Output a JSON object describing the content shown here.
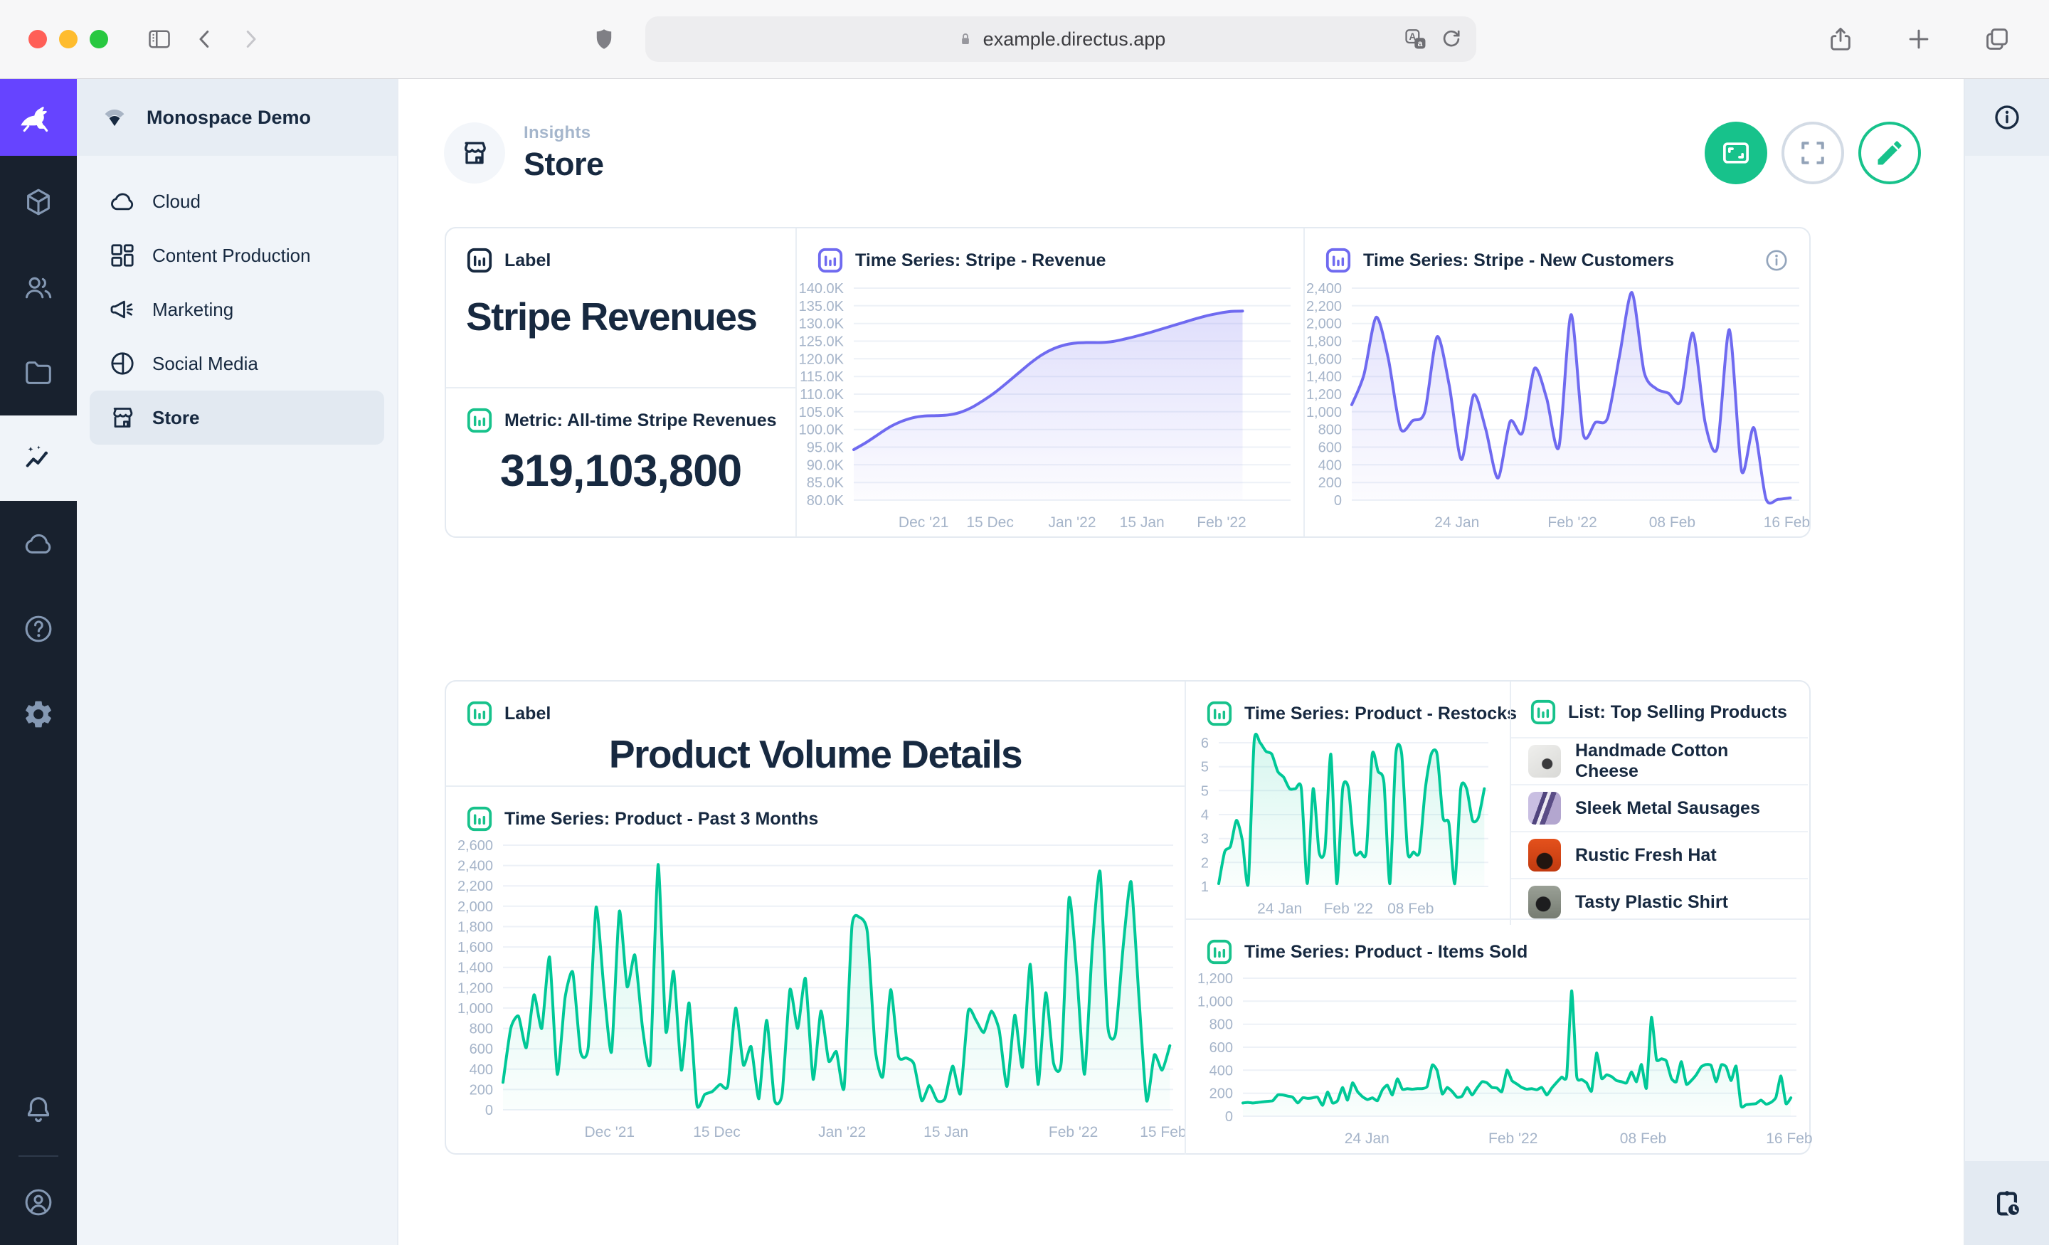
{
  "browser": {
    "url": "example.directus.app",
    "icons": [
      "sidebar-toggle",
      "back",
      "forward",
      "privacy-shield",
      "lock",
      "translate",
      "reload",
      "share",
      "new-tab",
      "tabs-overview"
    ]
  },
  "module_bar": {
    "icons": [
      "rabbit-logo",
      "collections-cube",
      "users",
      "files-folder",
      "insights-active",
      "cloud",
      "help",
      "settings-gear",
      "notifications-bell",
      "user-avatar"
    ]
  },
  "sidebar": {
    "project": "Monospace Demo",
    "items": [
      {
        "label": "Cloud",
        "icon": "cloud"
      },
      {
        "label": "Content Production",
        "icon": "dashboard-grid"
      },
      {
        "label": "Marketing",
        "icon": "megaphone"
      },
      {
        "label": "Social Media",
        "icon": "pie-circle"
      },
      {
        "label": "Store",
        "icon": "storefront",
        "active": true
      }
    ]
  },
  "header": {
    "breadcrumb": "Insights",
    "title": "Store",
    "actions": [
      "present-mode",
      "fullscreen",
      "edit"
    ]
  },
  "panels": {
    "label_stripe": {
      "title": "Label",
      "text": "Stripe Revenues"
    },
    "metric": {
      "title": "Metric: All-time Stripe Revenues",
      "value": "319,103,800"
    },
    "revenue": {
      "title": "Time Series: Stripe - Revenue"
    },
    "new_customers": {
      "title": "Time Series: Stripe - New Customers"
    },
    "label_product": {
      "title": "Label",
      "text": "Product Volume Details"
    },
    "past3": {
      "title": "Time Series: Product - Past 3 Months"
    },
    "restocks": {
      "title": "Time Series: Product - Restocks"
    },
    "list": {
      "title": "List: Top Selling Products",
      "products": [
        {
          "name": "Handmade Cotton Cheese"
        },
        {
          "name": "Sleek Metal Sausages"
        },
        {
          "name": "Rustic Fresh Hat"
        },
        {
          "name": "Tasty Plastic Shirt"
        }
      ]
    },
    "items_sold": {
      "title": "Time Series: Product - Items Sold"
    }
  },
  "colors": {
    "accent_green": "#17c28b",
    "chart_green": "#00c897",
    "chart_purple": "#6f6af0",
    "navy": "#172940",
    "brand_purple": "#6644ff"
  },
  "chart_data": [
    {
      "id": "revenue",
      "type": "area",
      "title": "Time Series: Stripe - Revenue",
      "color": "#6f6af0",
      "fo": 0.22,
      "ymin": 80,
      "ymax": 140,
      "xend": 0.89,
      "smooth": 1,
      "yticks": [
        "140.0K",
        "135.0K",
        "130.0K",
        "125.0K",
        "120.0K",
        "115.0K",
        "110.0K",
        "105.0K",
        "100.0K",
        "95.0K",
        "90.0K",
        "85.0K",
        "80.0K"
      ],
      "xticks": [
        {
          "p": 0.16,
          "l": "Dec '21"
        },
        {
          "p": 0.312,
          "l": "15 Dec"
        },
        {
          "p": 0.5,
          "l": "Jan '22"
        },
        {
          "p": 0.66,
          "l": "15 Jan"
        },
        {
          "p": 0.842,
          "l": "Feb '22"
        }
      ],
      "values": [
        94.3,
        96.2,
        98.4,
        100.6,
        102.2,
        103.3,
        103.8,
        103.9,
        104.1,
        104.8,
        106.2,
        108.2,
        110.5,
        113.2,
        116,
        118.8,
        121.2,
        122.9,
        124,
        124.5,
        124.6,
        124.6,
        124.9,
        125.6,
        126.4,
        127.3,
        128.3,
        129.3,
        130.3,
        131.3,
        132.2,
        132.9,
        133.4,
        133.5
      ]
    },
    {
      "id": "newcust",
      "type": "area",
      "title": "Time Series: Stripe - New Customers",
      "color": "#6f6af0",
      "fo": 0.2,
      "ymin": 0,
      "ymax": 2400,
      "xend": 0.98,
      "smooth": 0.8,
      "yticks": [
        "2,400",
        "2,200",
        "2,000",
        "1,800",
        "1,600",
        "1,400",
        "1,200",
        "1,000",
        "800",
        "600",
        "400",
        "200",
        "0"
      ],
      "xticks": [
        {
          "p": 0.235,
          "l": "24 Jan"
        },
        {
          "p": 0.493,
          "l": "Feb '22"
        },
        {
          "p": 0.716,
          "l": "08 Feb"
        },
        {
          "p": 0.972,
          "l": "16 Feb"
        }
      ],
      "values": [
        1080,
        1420,
        2070,
        1600,
        810,
        900,
        1000,
        1850,
        1300,
        460,
        1190,
        800,
        250,
        890,
        760,
        1490,
        1150,
        600,
        2100,
        750,
        880,
        930,
        1650,
        2350,
        1450,
        1260,
        1210,
        1120,
        1890,
        880,
        590,
        1930,
        330,
        820,
        15,
        10,
        25
      ]
    },
    {
      "id": "past3",
      "type": "area",
      "title": "Time Series: Product - Past 3 Months",
      "color": "#00c897",
      "fo": 0.16,
      "ymin": 0,
      "ymax": 2600,
      "xend": 0.995,
      "smooth": 0.6,
      "yticks": [
        "2,600",
        "2,400",
        "2,200",
        "2,000",
        "1,800",
        "1,600",
        "1,400",
        "1,200",
        "1,000",
        "800",
        "600",
        "400",
        "200",
        "0"
      ],
      "xticks": [
        {
          "p": 0.159,
          "l": "Dec '21"
        },
        {
          "p": 0.319,
          "l": "15 Dec"
        },
        {
          "p": 0.506,
          "l": "Jan '22"
        },
        {
          "p": 0.661,
          "l": "15 Jan"
        },
        {
          "p": 0.851,
          "l": "Feb '22"
        },
        {
          "p": 0.985,
          "l": "15 Feb"
        }
      ],
      "values": [
        270,
        800,
        920,
        610,
        1130,
        800,
        1500,
        350,
        1100,
        1350,
        570,
        620,
        1990,
        1200,
        570,
        1950,
        1210,
        1520,
        800,
        470,
        2410,
        770,
        1360,
        390,
        1050,
        50,
        150,
        180,
        250,
        240,
        1000,
        440,
        620,
        110,
        880,
        100,
        160,
        1180,
        800,
        1290,
        300,
        970,
        480,
        570,
        220,
        1800,
        1890,
        1740,
        600,
        330,
        1180,
        530,
        510,
        450,
        90,
        240,
        90,
        110,
        430,
        160,
        970,
        880,
        760,
        970,
        780,
        230,
        930,
        420,
        1430,
        250,
        1150,
        460,
        470,
        2080,
        1350,
        350,
        1600,
        2340,
        820,
        750,
        1620,
        2240,
        1120,
        90,
        540,
        390,
        630
      ]
    },
    {
      "id": "restocks",
      "type": "area",
      "title": "Time Series: Product - Restocks",
      "color": "#00c897",
      "fo": 0.16,
      "ymin": 1,
      "ymax": 6,
      "xend": 0.985,
      "smooth": 0.7,
      "yticks": [
        "6",
        "5",
        "5",
        "4",
        "3",
        "2",
        "1"
      ],
      "xticks": [
        {
          "p": 0.226,
          "l": "24 Jan"
        },
        {
          "p": 0.481,
          "l": "Feb '22"
        },
        {
          "p": 0.712,
          "l": "08 Feb"
        }
      ],
      "values": [
        1.1,
        2.2,
        2.4,
        3.3,
        2.6,
        1.1,
        6.05,
        6,
        5.7,
        5.6,
        5,
        4.8,
        4.4,
        4.4,
        4.4,
        1.1,
        4.4,
        2.2,
        2.3,
        5.6,
        1.1,
        4.4,
        4.4,
        2.2,
        2.2,
        2.2,
        5.6,
        5,
        4.6,
        1.1,
        5.6,
        5.6,
        2.2,
        2.2,
        2.2,
        4.4,
        5.6,
        5.6,
        3.4,
        3.2,
        1.1,
        4.4,
        4.4,
        3.3,
        3.4,
        4.4
      ]
    },
    {
      "id": "items",
      "type": "area",
      "title": "Time Series: Product - Items Sold",
      "color": "#00c897",
      "fo": 0.14,
      "ymin": 0,
      "ymax": 1200,
      "xend": 0.99,
      "smooth": 0.5,
      "yticks": [
        "1,200",
        "1,000",
        "800",
        "600",
        "400",
        "200",
        "0"
      ],
      "xticks": [
        {
          "p": 0.224,
          "l": "24 Jan"
        },
        {
          "p": 0.488,
          "l": "Feb '22"
        },
        {
          "p": 0.723,
          "l": "08 Feb"
        },
        {
          "p": 0.987,
          "l": "16 Feb"
        }
      ],
      "values": [
        115,
        120,
        115,
        120,
        125,
        130,
        135,
        185,
        185,
        175,
        165,
        115,
        160,
        155,
        160,
        165,
        95,
        210,
        115,
        135,
        250,
        140,
        290,
        215,
        170,
        145,
        160,
        135,
        230,
        270,
        185,
        325,
        235,
        240,
        235,
        240,
        240,
        260,
        445,
        395,
        195,
        250,
        215,
        165,
        175,
        250,
        185,
        245,
        300,
        290,
        250,
        245,
        215,
        400,
        310,
        280,
        250,
        235,
        240,
        230,
        250,
        185,
        245,
        295,
        340,
        350,
        1090,
        350,
        320,
        290,
        220,
        550,
        330,
        360,
        345,
        310,
        300,
        290,
        385,
        300,
        450,
        245,
        860,
        495,
        500,
        480,
        330,
        300,
        475,
        280,
        310,
        360,
        430,
        450,
        440,
        300,
        445,
        430,
        310,
        435,
        90,
        100,
        105,
        110,
        140,
        105,
        120,
        165,
        350,
        110,
        160
      ]
    }
  ]
}
